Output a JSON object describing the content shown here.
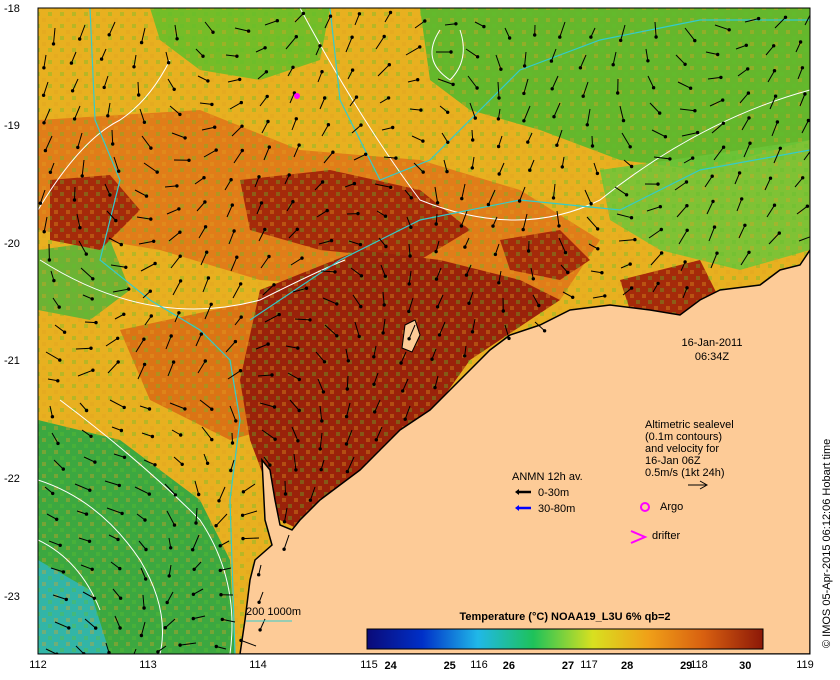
{
  "axes": {
    "x_ticks": [
      "112",
      "113",
      "114",
      "115",
      "116",
      "117",
      "118",
      "119"
    ],
    "y_ticks": [
      "-18",
      "-19",
      "-20",
      "-21",
      "-22",
      "-23"
    ],
    "lon_range": [
      112,
      119
    ],
    "lat_range": [
      -23.5,
      -18.0
    ]
  },
  "timestamp": {
    "date": "16-Jan-2011",
    "time": "06:34Z"
  },
  "sealevel_note": {
    "lines": [
      "Altimetric sealevel",
      "(0.1m contours)",
      "and velocity for",
      "16-Jan 06Z"
    ],
    "scale": "0.5m/s (1kt 24h)"
  },
  "legend": {
    "title": "ANMN 12h av.",
    "items": [
      {
        "label": "0-30m",
        "color": "#000000"
      },
      {
        "label": "30-80m",
        "color": "#0000ff"
      }
    ],
    "argo_label": "Argo",
    "argo_color": "#ff00ff",
    "drifter_label": "drifter",
    "drifter_color": "#ff00ff"
  },
  "depth_legend": {
    "label": "200  1000m",
    "color": "#33cccc"
  },
  "colorbar": {
    "title": "Temperature (°C) NOAA19_L3U 6% qb=2",
    "ticks": [
      "24",
      "25",
      "26",
      "27",
      "28",
      "29",
      "30"
    ],
    "range": [
      23.6,
      30.3
    ]
  },
  "credit": "© IMOS 05-Apr-2015 06:12:06 Hobart time",
  "colors": {
    "land": "#fdcb97",
    "warm": "#a52a0a",
    "bathy": "#33cccc"
  }
}
